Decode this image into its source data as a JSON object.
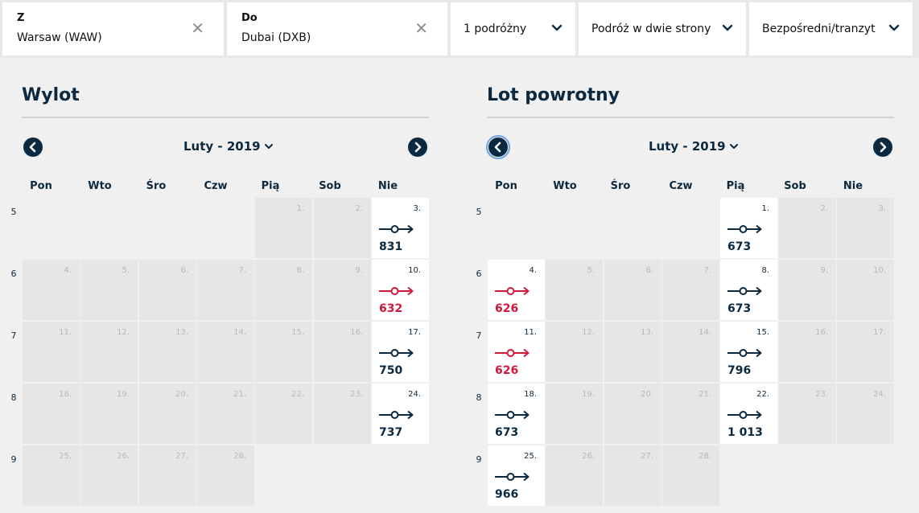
{
  "search": {
    "from": {
      "label": "Z",
      "value": "Warsaw (WAW)"
    },
    "to": {
      "label": "Do",
      "value": "Dubai (DXB)"
    },
    "clear_glyph": "✕",
    "travelers": "1 podróżny",
    "trip_type": "Podróż w dwie strony",
    "stops": "Bezpośredni/tranzyt"
  },
  "colors": {
    "navy": "#0b2940",
    "cheapest": "#d4183c",
    "available_bg": "#ffffff",
    "unavailable_bg": "#e6e6e6"
  },
  "weekdays": [
    "Pon",
    "Wto",
    "Śro",
    "Czw",
    "Pią",
    "Sob",
    "Nie"
  ],
  "outbound": {
    "title": "Wylot",
    "month": "Luty - 2019",
    "weeks": [
      "5",
      "6",
      "7",
      "8",
      "9"
    ],
    "days": [
      {
        "day": "1.",
        "week": 0,
        "col": 4
      },
      {
        "day": "2.",
        "week": 0,
        "col": 5
      },
      {
        "day": "3.",
        "week": 0,
        "col": 6,
        "price": "831"
      },
      {
        "day": "4.",
        "week": 1,
        "col": 0
      },
      {
        "day": "5.",
        "week": 1,
        "col": 1
      },
      {
        "day": "6.",
        "week": 1,
        "col": 2
      },
      {
        "day": "7.",
        "week": 1,
        "col": 3
      },
      {
        "day": "8.",
        "week": 1,
        "col": 4
      },
      {
        "day": "9.",
        "week": 1,
        "col": 5
      },
      {
        "day": "10.",
        "week": 1,
        "col": 6,
        "price": "632",
        "cheapest": true
      },
      {
        "day": "11.",
        "week": 2,
        "col": 0
      },
      {
        "day": "12.",
        "week": 2,
        "col": 1
      },
      {
        "day": "13.",
        "week": 2,
        "col": 2
      },
      {
        "day": "14.",
        "week": 2,
        "col": 3
      },
      {
        "day": "15.",
        "week": 2,
        "col": 4
      },
      {
        "day": "16.",
        "week": 2,
        "col": 5
      },
      {
        "day": "17.",
        "week": 2,
        "col": 6,
        "price": "750"
      },
      {
        "day": "18.",
        "week": 3,
        "col": 0
      },
      {
        "day": "19.",
        "week": 3,
        "col": 1
      },
      {
        "day": "20.",
        "week": 3,
        "col": 2
      },
      {
        "day": "21.",
        "week": 3,
        "col": 3
      },
      {
        "day": "22.",
        "week": 3,
        "col": 4
      },
      {
        "day": "23.",
        "week": 3,
        "col": 5
      },
      {
        "day": "24.",
        "week": 3,
        "col": 6,
        "price": "737"
      },
      {
        "day": "25.",
        "week": 4,
        "col": 0
      },
      {
        "day": "26.",
        "week": 4,
        "col": 1
      },
      {
        "day": "27.",
        "week": 4,
        "col": 2
      },
      {
        "day": "28.",
        "week": 4,
        "col": 3
      }
    ]
  },
  "return": {
    "title": "Lot powrotny",
    "month": "Luty - 2019",
    "weeks": [
      "5",
      "6",
      "7",
      "8",
      "9"
    ],
    "days": [
      {
        "day": "1.",
        "week": 0,
        "col": 4,
        "price": "673"
      },
      {
        "day": "2.",
        "week": 0,
        "col": 5
      },
      {
        "day": "3.",
        "week": 0,
        "col": 6
      },
      {
        "day": "4.",
        "week": 1,
        "col": 0,
        "price": "626",
        "cheapest": true
      },
      {
        "day": "5.",
        "week": 1,
        "col": 1
      },
      {
        "day": "6.",
        "week": 1,
        "col": 2
      },
      {
        "day": "7.",
        "week": 1,
        "col": 3
      },
      {
        "day": "8.",
        "week": 1,
        "col": 4,
        "price": "673"
      },
      {
        "day": "9.",
        "week": 1,
        "col": 5
      },
      {
        "day": "10.",
        "week": 1,
        "col": 6
      },
      {
        "day": "11.",
        "week": 2,
        "col": 0,
        "price": "626",
        "cheapest": true
      },
      {
        "day": "12.",
        "week": 2,
        "col": 1
      },
      {
        "day": "13.",
        "week": 2,
        "col": 2
      },
      {
        "day": "14.",
        "week": 2,
        "col": 3
      },
      {
        "day": "15.",
        "week": 2,
        "col": 4,
        "price": "796"
      },
      {
        "day": "16.",
        "week": 2,
        "col": 5
      },
      {
        "day": "17.",
        "week": 2,
        "col": 6
      },
      {
        "day": "18.",
        "week": 3,
        "col": 0,
        "price": "673"
      },
      {
        "day": "19.",
        "week": 3,
        "col": 1
      },
      {
        "day": "20.",
        "week": 3,
        "col": 2
      },
      {
        "day": "21.",
        "week": 3,
        "col": 3
      },
      {
        "day": "22.",
        "week": 3,
        "col": 4,
        "price": "1 013"
      },
      {
        "day": "23.",
        "week": 3,
        "col": 5
      },
      {
        "day": "24.",
        "week": 3,
        "col": 6
      },
      {
        "day": "25.",
        "week": 4,
        "col": 0,
        "price": "966"
      },
      {
        "day": "26.",
        "week": 4,
        "col": 1
      },
      {
        "day": "27.",
        "week": 4,
        "col": 2
      },
      {
        "day": "28.",
        "week": 4,
        "col": 3
      }
    ]
  }
}
